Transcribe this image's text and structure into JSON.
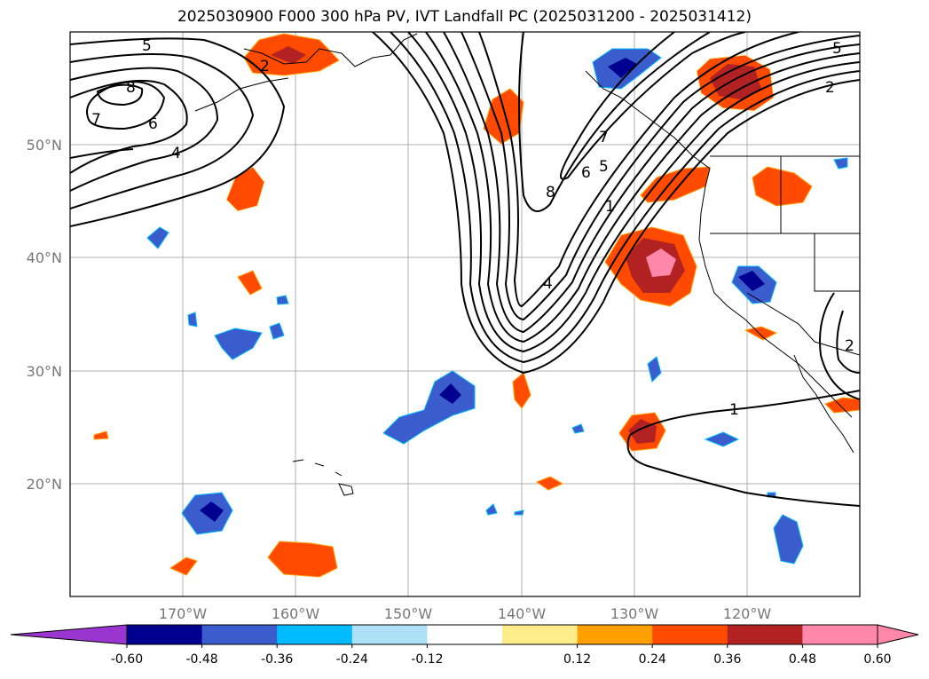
{
  "title": "2025030900 F000 300 hPa PV, IVT Landfall PC (2025031200 - 2025031412)",
  "map": {
    "lon_range": [
      -180,
      -110
    ],
    "lat_range": [
      10,
      60
    ],
    "lat_ticks": [
      "20°N",
      "30°N",
      "40°N",
      "50°N"
    ],
    "lat_values": [
      20,
      30,
      40,
      50
    ],
    "lon_ticks": [
      "170°W",
      "160°W",
      "150°W",
      "140°W",
      "130°W",
      "120°W"
    ],
    "lon_values": [
      -170,
      -160,
      -150,
      -140,
      -130,
      -120
    ],
    "grid": true
  },
  "contour_labels": [
    "5",
    "8",
    "7",
    "6",
    "4",
    "2",
    "8",
    "7",
    "6",
    "5",
    "1",
    "4",
    "5",
    "2",
    "2",
    "1"
  ],
  "colorbar": {
    "labels": [
      "-0.60",
      "-0.48",
      "-0.36",
      "-0.24",
      "-0.12",
      "0.12",
      "0.24",
      "0.36",
      "0.48",
      "0.60"
    ],
    "colors": [
      "#9a35d0",
      "#000090",
      "#3a5ccc",
      "#00bbff",
      "#aee0f8",
      "#ffffff",
      "#ffec8a",
      "#ffa000",
      "#ff4a00",
      "#b22222",
      "#ff88aa",
      "#ff88aa"
    ],
    "extend": "both"
  }
}
